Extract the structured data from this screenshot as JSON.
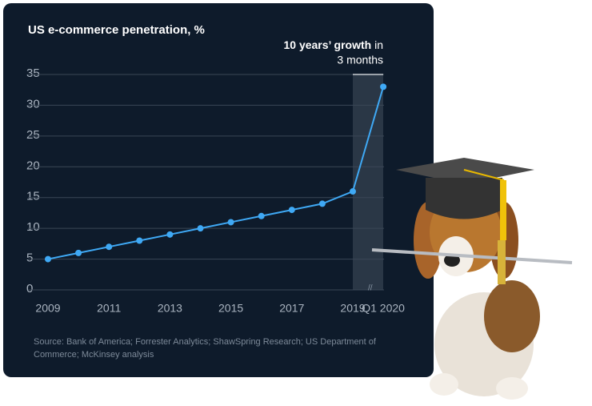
{
  "chart_data": {
    "type": "line",
    "title": "US e-commerce penetration, %",
    "annotation": {
      "emphasis": "10 years’ growth",
      "rest": [
        "in",
        "3 months"
      ]
    },
    "source": "Source: Bank of America; Forrester Analytics; ShawSpring Research; US Department of Commerce; McKinsey analysis",
    "categories": [
      "2009",
      null,
      "2011",
      null,
      "2013",
      null,
      "2015",
      null,
      "2017",
      null,
      "2019",
      "Q1 2020"
    ],
    "values": [
      5,
      6,
      7,
      8,
      9,
      10,
      11,
      12,
      13,
      14,
      16,
      33
    ],
    "color": "#3fa9f5",
    "ylim": [
      0,
      35
    ],
    "yticks": [
      0,
      5,
      10,
      15,
      20,
      25,
      30,
      35
    ],
    "grid": true
  }
}
